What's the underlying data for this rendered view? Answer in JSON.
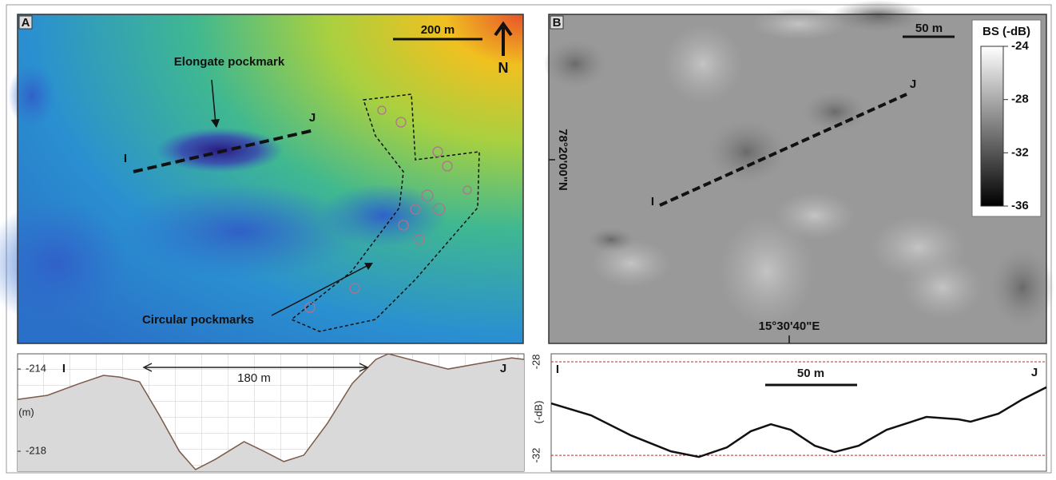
{
  "panel_a": {
    "label": "A",
    "scale_bar": "200 m",
    "north": "N",
    "elongate_label": "Elongate pockmark",
    "circular_label": "Circular pockmarks",
    "start": "I",
    "end": "J"
  },
  "panel_b": {
    "label": "B",
    "scale_bar": "50 m",
    "latitude": "78°20'00\"N",
    "longitude": "15°30'40\"E",
    "start": "I",
    "end": "J",
    "colorbar": {
      "title": "BS (-dB)",
      "lim": [
        -24,
        -36
      ],
      "ticks": [
        -24,
        -28,
        -32,
        -36
      ]
    }
  },
  "profile_a": {
    "type": "line",
    "start": "I",
    "end": "J",
    "unit": "(m)",
    "span_label": "180 m",
    "color": "#7a5a4a",
    "fill": "#d9d9d9",
    "x": [
      0,
      24,
      50,
      69,
      82,
      98,
      114,
      130,
      143,
      159,
      182,
      198,
      214,
      230,
      249,
      269,
      288,
      298,
      320,
      346,
      371,
      397,
      407
    ],
    "values": [
      -215.48,
      -215.28,
      -214.7,
      -214.31,
      -214.39,
      -214.62,
      -216.25,
      -218,
      -218.89,
      -218.39,
      -217.53,
      -218,
      -218.5,
      -218.19,
      -216.64,
      -214.7,
      -213.53,
      -213.26,
      -213.61,
      -214,
      -213.73,
      -213.46,
      -213.53
    ],
    "xlim": [
      0,
      407
    ],
    "ylim": [
      -218.97,
      -213.26
    ],
    "yticks": [
      -214,
      -218
    ]
  },
  "profile_b": {
    "type": "line",
    "start": "I",
    "end": "J",
    "unit": "(-dB)",
    "scale_bar": "50 m",
    "color": "#111111",
    "x": [
      0,
      21.7,
      43.5,
      65.2,
      80.4,
      95.7,
      108.7,
      119.6,
      130.4,
      143.5,
      154.3,
      167.4,
      182.6,
      204.3,
      221.7,
      228.3,
      243.5,
      256.5,
      269.6
    ],
    "values": [
      -29.78,
      -30.29,
      -31.15,
      -31.83,
      -32.07,
      -31.66,
      -30.97,
      -30.67,
      -30.91,
      -31.59,
      -31.86,
      -31.59,
      -30.91,
      -30.36,
      -30.46,
      -30.56,
      -30.22,
      -29.61,
      -29.09
    ],
    "xlim": [
      0,
      269.6
    ],
    "ylim": [
      -32.68,
      -27.66
    ],
    "yticks": [
      -28,
      -32
    ],
    "grid": true
  }
}
